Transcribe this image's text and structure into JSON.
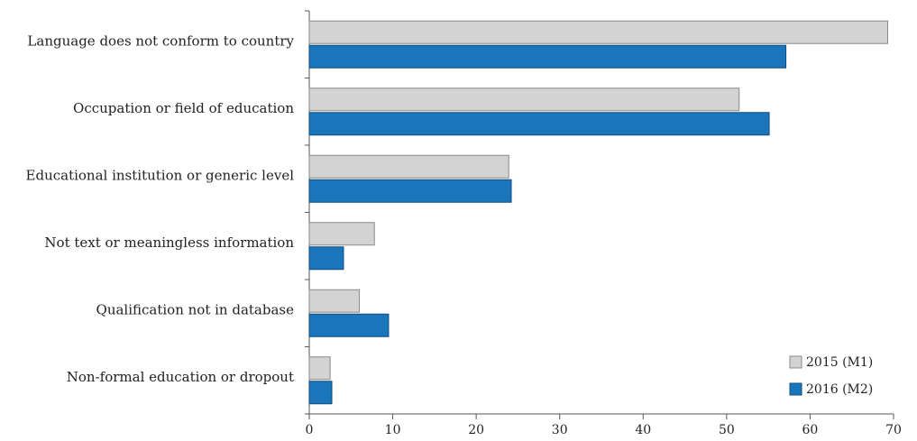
{
  "chart_data": {
    "type": "bar",
    "orientation": "horizontal",
    "categories": [
      "Language does not conform to country",
      "Occupation or field of education",
      "Educational institution or generic level",
      "Not text or meaningless information",
      "Qualification not in database",
      "Non-formal education or dropout"
    ],
    "series": [
      {
        "name": "2015 (M1)",
        "color": "#d3d3d3",
        "values": [
          69.3,
          51.5,
          23.9,
          7.8,
          6.0,
          2.5
        ]
      },
      {
        "name": "2016 (M2)",
        "color": "#1b75bb",
        "values": [
          57.1,
          55.1,
          24.2,
          4.1,
          9.5,
          2.7
        ]
      }
    ],
    "xlim": [
      0,
      70
    ],
    "xticks": [
      0,
      10,
      20,
      30,
      40,
      50,
      60,
      70
    ],
    "grid": false,
    "legend_position": "bottom-right"
  }
}
